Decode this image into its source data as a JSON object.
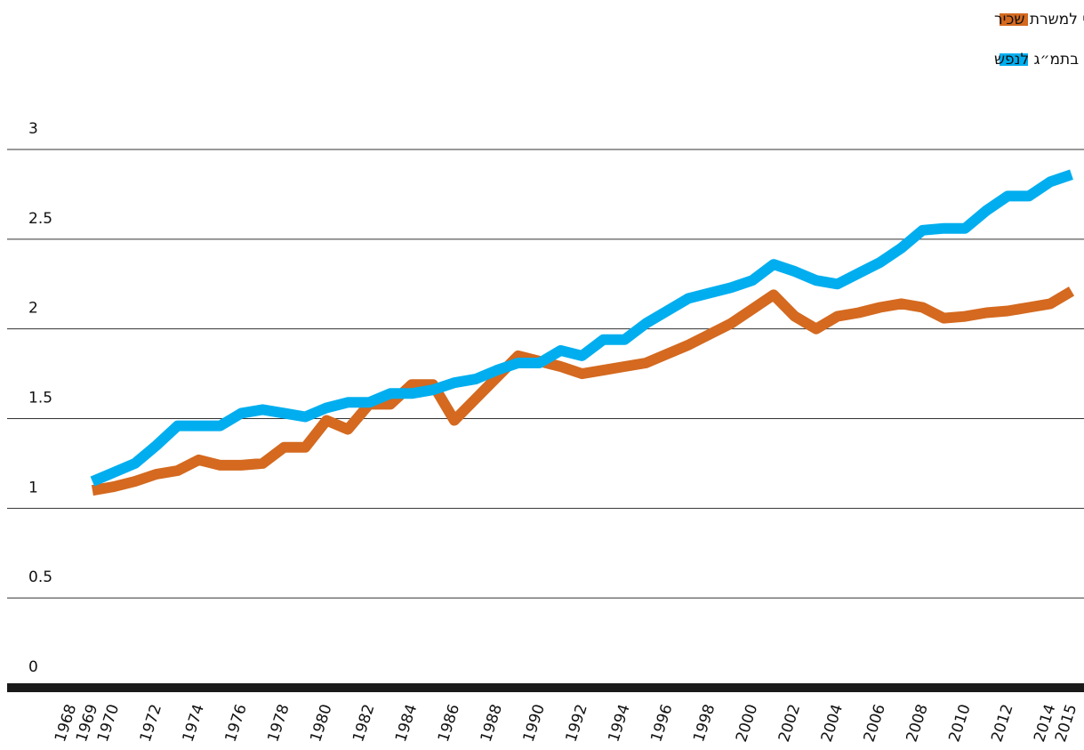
{
  "chart_data": {
    "type": "line",
    "categories": [
      "1968",
      "1969",
      "1970",
      null,
      "1972",
      null,
      "1974",
      null,
      "1976",
      null,
      "1978",
      null,
      "1980",
      null,
      "1982",
      null,
      "1984",
      null,
      "1986",
      null,
      "1988",
      null,
      "1990",
      null,
      "1992",
      null,
      "1994",
      null,
      "1996",
      null,
      "1998",
      null,
      "2000",
      null,
      "2002",
      null,
      "2004",
      null,
      "2006",
      null,
      "2008",
      null,
      "2010",
      null,
      "2012",
      null,
      "2014",
      "2015"
    ],
    "series": [
      {
        "name": "השינוי בשכר הריאלי למשרת שכיר",
        "color": "#d4691f",
        "values": [
          null,
          1.1,
          1.12,
          1.15,
          1.19,
          1.21,
          1.27,
          1.24,
          1.24,
          1.25,
          1.34,
          1.34,
          1.49,
          1.44,
          1.58,
          1.58,
          1.69,
          1.69,
          1.49,
          1.61,
          1.73,
          1.85,
          1.82,
          1.79,
          1.75,
          1.77,
          1.79,
          1.81,
          1.86,
          1.91,
          1.97,
          2.03,
          2.11,
          2.19,
          2.07,
          2.0,
          2.07,
          2.09,
          2.12,
          2.14,
          2.12,
          2.06,
          2.07,
          2.09,
          2.1,
          2.12,
          2.14,
          2.21
        ]
      },
      {
        "name": "שינוי ריאלי בתמ״ג לנפש",
        "color": "#00aeef",
        "values": [
          null,
          1.15,
          1.2,
          1.25,
          1.35,
          1.46,
          1.46,
          1.46,
          1.53,
          1.55,
          1.53,
          1.51,
          1.56,
          1.59,
          1.59,
          1.64,
          1.64,
          1.66,
          1.7,
          1.72,
          1.77,
          1.81,
          1.81,
          1.88,
          1.85,
          1.94,
          1.94,
          2.03,
          2.1,
          2.17,
          2.2,
          2.23,
          2.27,
          2.36,
          2.32,
          2.27,
          2.25,
          2.31,
          2.37,
          2.45,
          2.55,
          2.56,
          2.56,
          2.66,
          2.74,
          2.74,
          2.82,
          2.86
        ]
      }
    ],
    "ylim": [
      0,
      3
    ],
    "yticks": [
      0,
      0.5,
      1,
      1.5,
      2,
      2.5,
      3
    ],
    "grid": true
  }
}
